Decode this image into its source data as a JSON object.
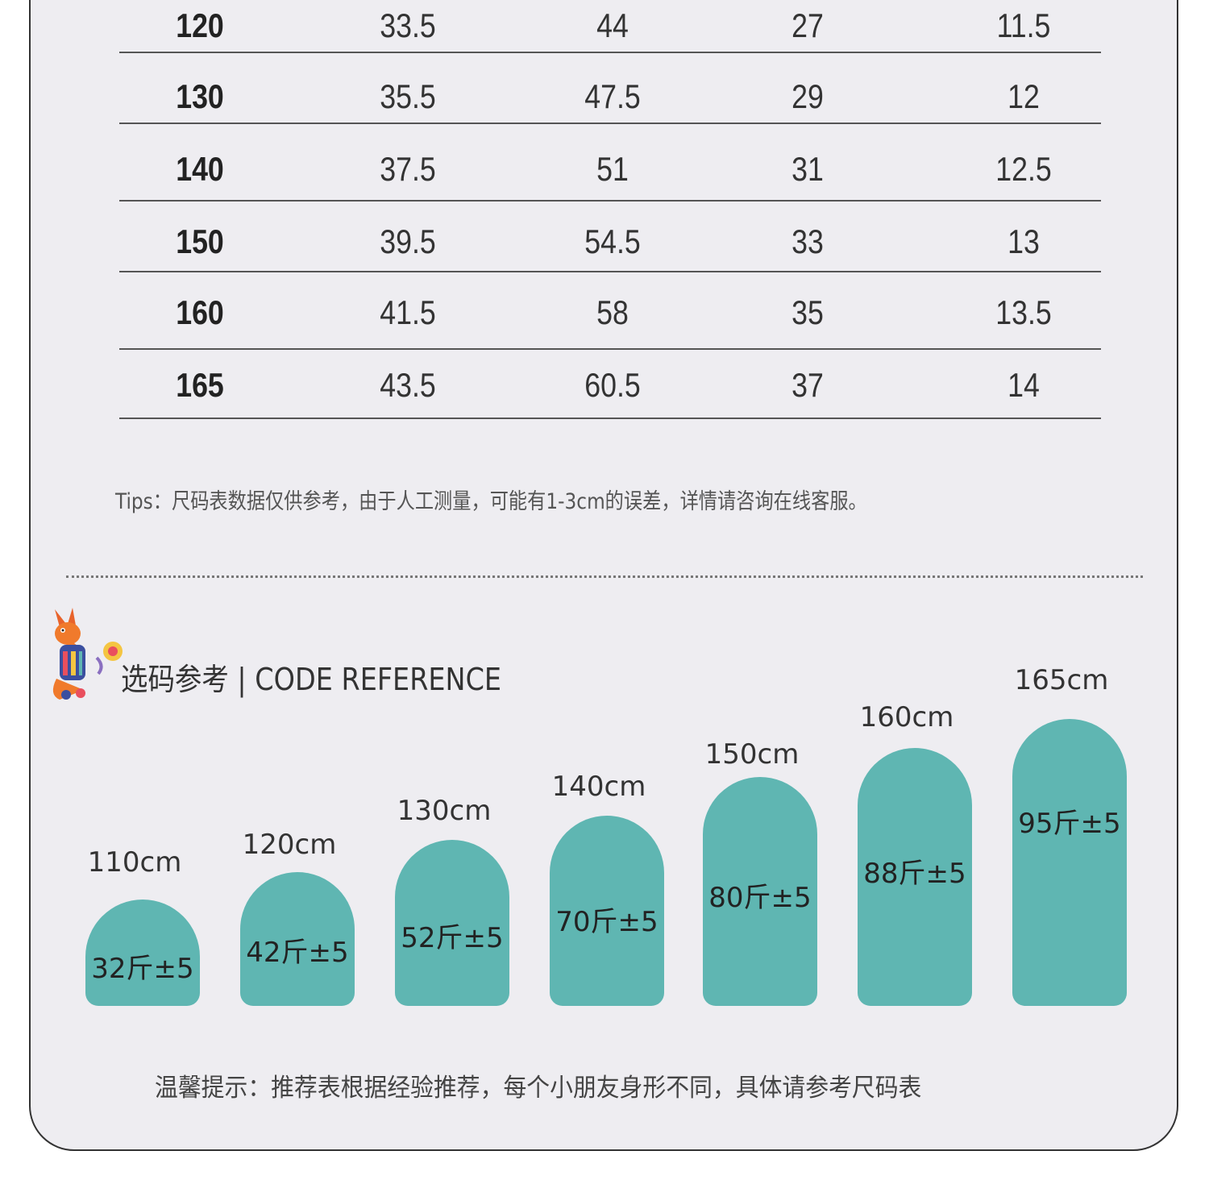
{
  "size_table": {
    "rows": [
      [
        "120",
        "33.5",
        "44",
        "27",
        "11.5"
      ],
      [
        "130",
        "35.5",
        "47.5",
        "29",
        "12"
      ],
      [
        "140",
        "37.5",
        "51",
        "31",
        "12.5"
      ],
      [
        "150",
        "39.5",
        "54.5",
        "33",
        "13"
      ],
      [
        "160",
        "41.5",
        "58",
        "35",
        "13.5"
      ],
      [
        "165",
        "43.5",
        "60.5",
        "37",
        "14"
      ]
    ]
  },
  "tips": "Tips：尺码表数据仅供参考，由于人工测量，可能有1-3cm的误差，详情请咨询在线客服。",
  "code_reference": {
    "title": "选码参考 | CODE REFERENCE",
    "items": [
      {
        "height": "110cm",
        "weight": "32斤±5"
      },
      {
        "height": "120cm",
        "weight": "42斤±5"
      },
      {
        "height": "130cm",
        "weight": "52斤±5"
      },
      {
        "height": "140cm",
        "weight": "70斤±5"
      },
      {
        "height": "150cm",
        "weight": "80斤±5"
      },
      {
        "height": "160cm",
        "weight": "88斤±5"
      },
      {
        "height": "165cm",
        "weight": "95斤±5"
      }
    ],
    "bar_color": "#5fb6b2"
  },
  "footer_tip": "温馨提示：推荐表根据经验推荐，每个小朋友身形不同，具体请参考尺码表"
}
